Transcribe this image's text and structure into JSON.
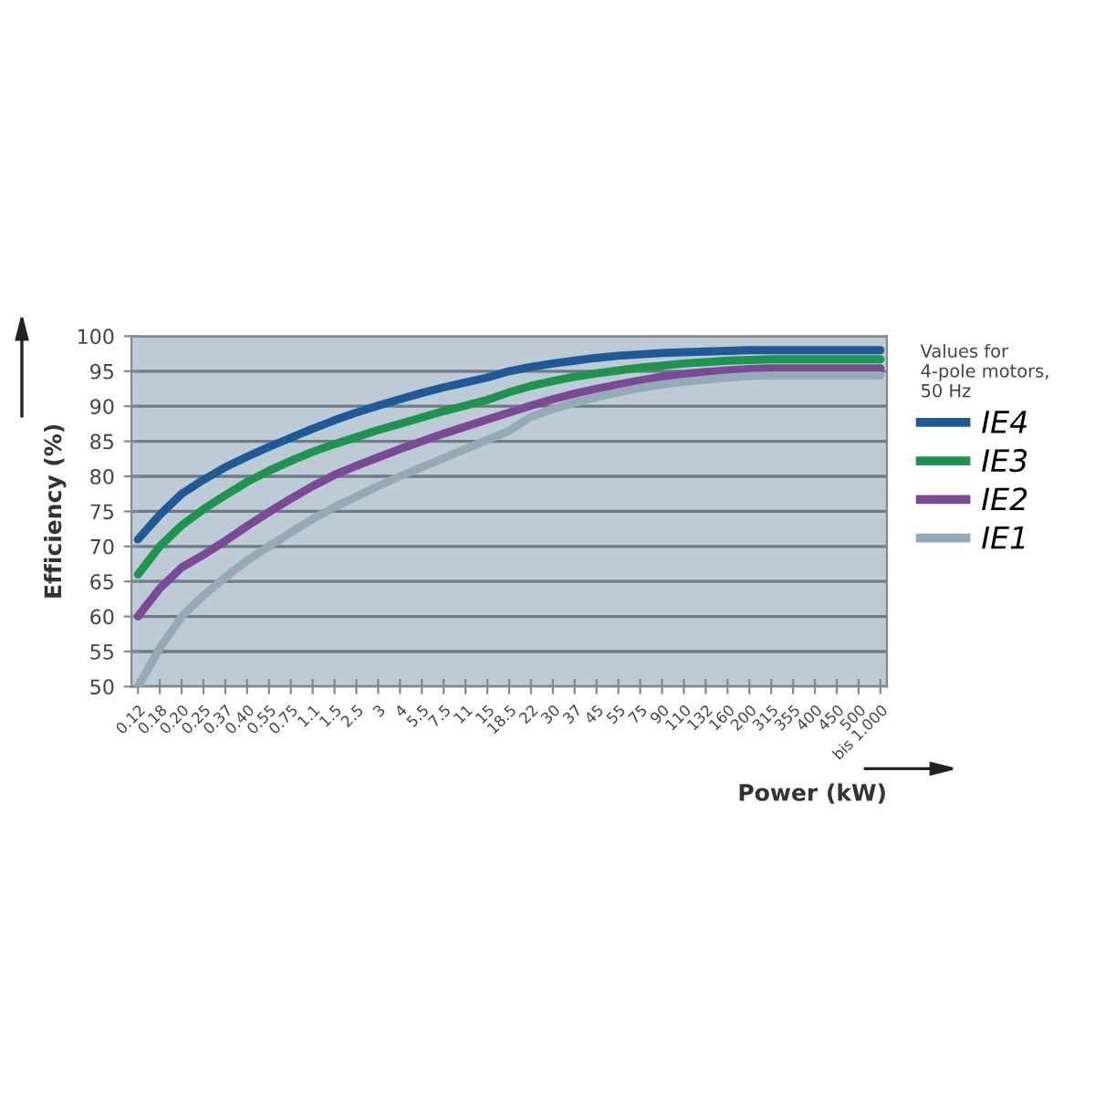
{
  "chart_data": {
    "type": "line",
    "xlabel": "Power (kW)",
    "ylabel": "Efficiency (%)",
    "legend_title": "Values for\n4-pole motors,\n50 Hz",
    "categories": [
      "0.12",
      "0.18",
      "0.20",
      "0.25",
      "0.37",
      "0.40",
      "0.55",
      "0.75",
      "1.1",
      "1.5",
      "2.5",
      "3",
      "4",
      "5.5",
      "7.5",
      "11",
      "15",
      "18.5",
      "22",
      "30",
      "37",
      "45",
      "55",
      "75",
      "90",
      "110",
      "132",
      "160",
      "200",
      "315",
      "355",
      "400",
      "450",
      "500",
      "bis 1.000"
    ],
    "series": [
      {
        "name": "IE4",
        "color": "#1f5a96",
        "values": [
          71,
          74.5,
          77.5,
          79.5,
          81.3,
          82.8,
          84.2,
          85.5,
          86.8,
          88,
          89.1,
          90.1,
          91,
          91.9,
          92.7,
          93.4,
          94.1,
          95,
          95.6,
          96.1,
          96.5,
          96.9,
          97.2,
          97.4,
          97.6,
          97.7,
          97.8,
          97.9,
          98,
          98,
          98,
          98,
          98,
          98,
          98
        ]
      },
      {
        "name": "IE3",
        "color": "#1e9450",
        "values": [
          66,
          70,
          73,
          75.3,
          77.3,
          79.2,
          80.8,
          82.2,
          83.5,
          84.6,
          85.6,
          86.6,
          87.5,
          88.4,
          89.3,
          90.1,
          90.9,
          92,
          92.9,
          93.6,
          94.2,
          94.7,
          95.1,
          95.5,
          95.8,
          96.1,
          96.3,
          96.5,
          96.6,
          96.7,
          96.7,
          96.7,
          96.7,
          96.7,
          96.7
        ]
      },
      {
        "name": "IE2",
        "color": "#7b4a94",
        "values": [
          60,
          64,
          67,
          68.8,
          70.8,
          72.9,
          74.9,
          76.8,
          78.6,
          80.2,
          81.5,
          82.7,
          83.9,
          85,
          86.1,
          87.1,
          88.1,
          89.1,
          90.1,
          91,
          91.8,
          92.5,
          93.1,
          93.7,
          94.2,
          94.6,
          94.9,
          95.1,
          95.3,
          95.4,
          95.4,
          95.4,
          95.4,
          95.4,
          95.4
        ]
      },
      {
        "name": "IE1",
        "color": "#95a9b6",
        "values": [
          50,
          55.5,
          60,
          63,
          65.6,
          68,
          70,
          72,
          73.9,
          75.6,
          77.1,
          78.6,
          80,
          81.3,
          82.6,
          83.9,
          85.2,
          86.5,
          88.5,
          89.6,
          90.5,
          91.3,
          92,
          92.6,
          93.1,
          93.5,
          93.8,
          94.1,
          94.3,
          94.4,
          94.4,
          94.4,
          94.4,
          94.4,
          94.4
        ]
      }
    ],
    "ylim": [
      50,
      100
    ],
    "yticks": [
      50,
      55,
      60,
      65,
      70,
      75,
      80,
      85,
      90,
      95,
      100
    ],
    "grid": "y",
    "legend": "right",
    "marker": "none",
    "line_style": "solid"
  }
}
